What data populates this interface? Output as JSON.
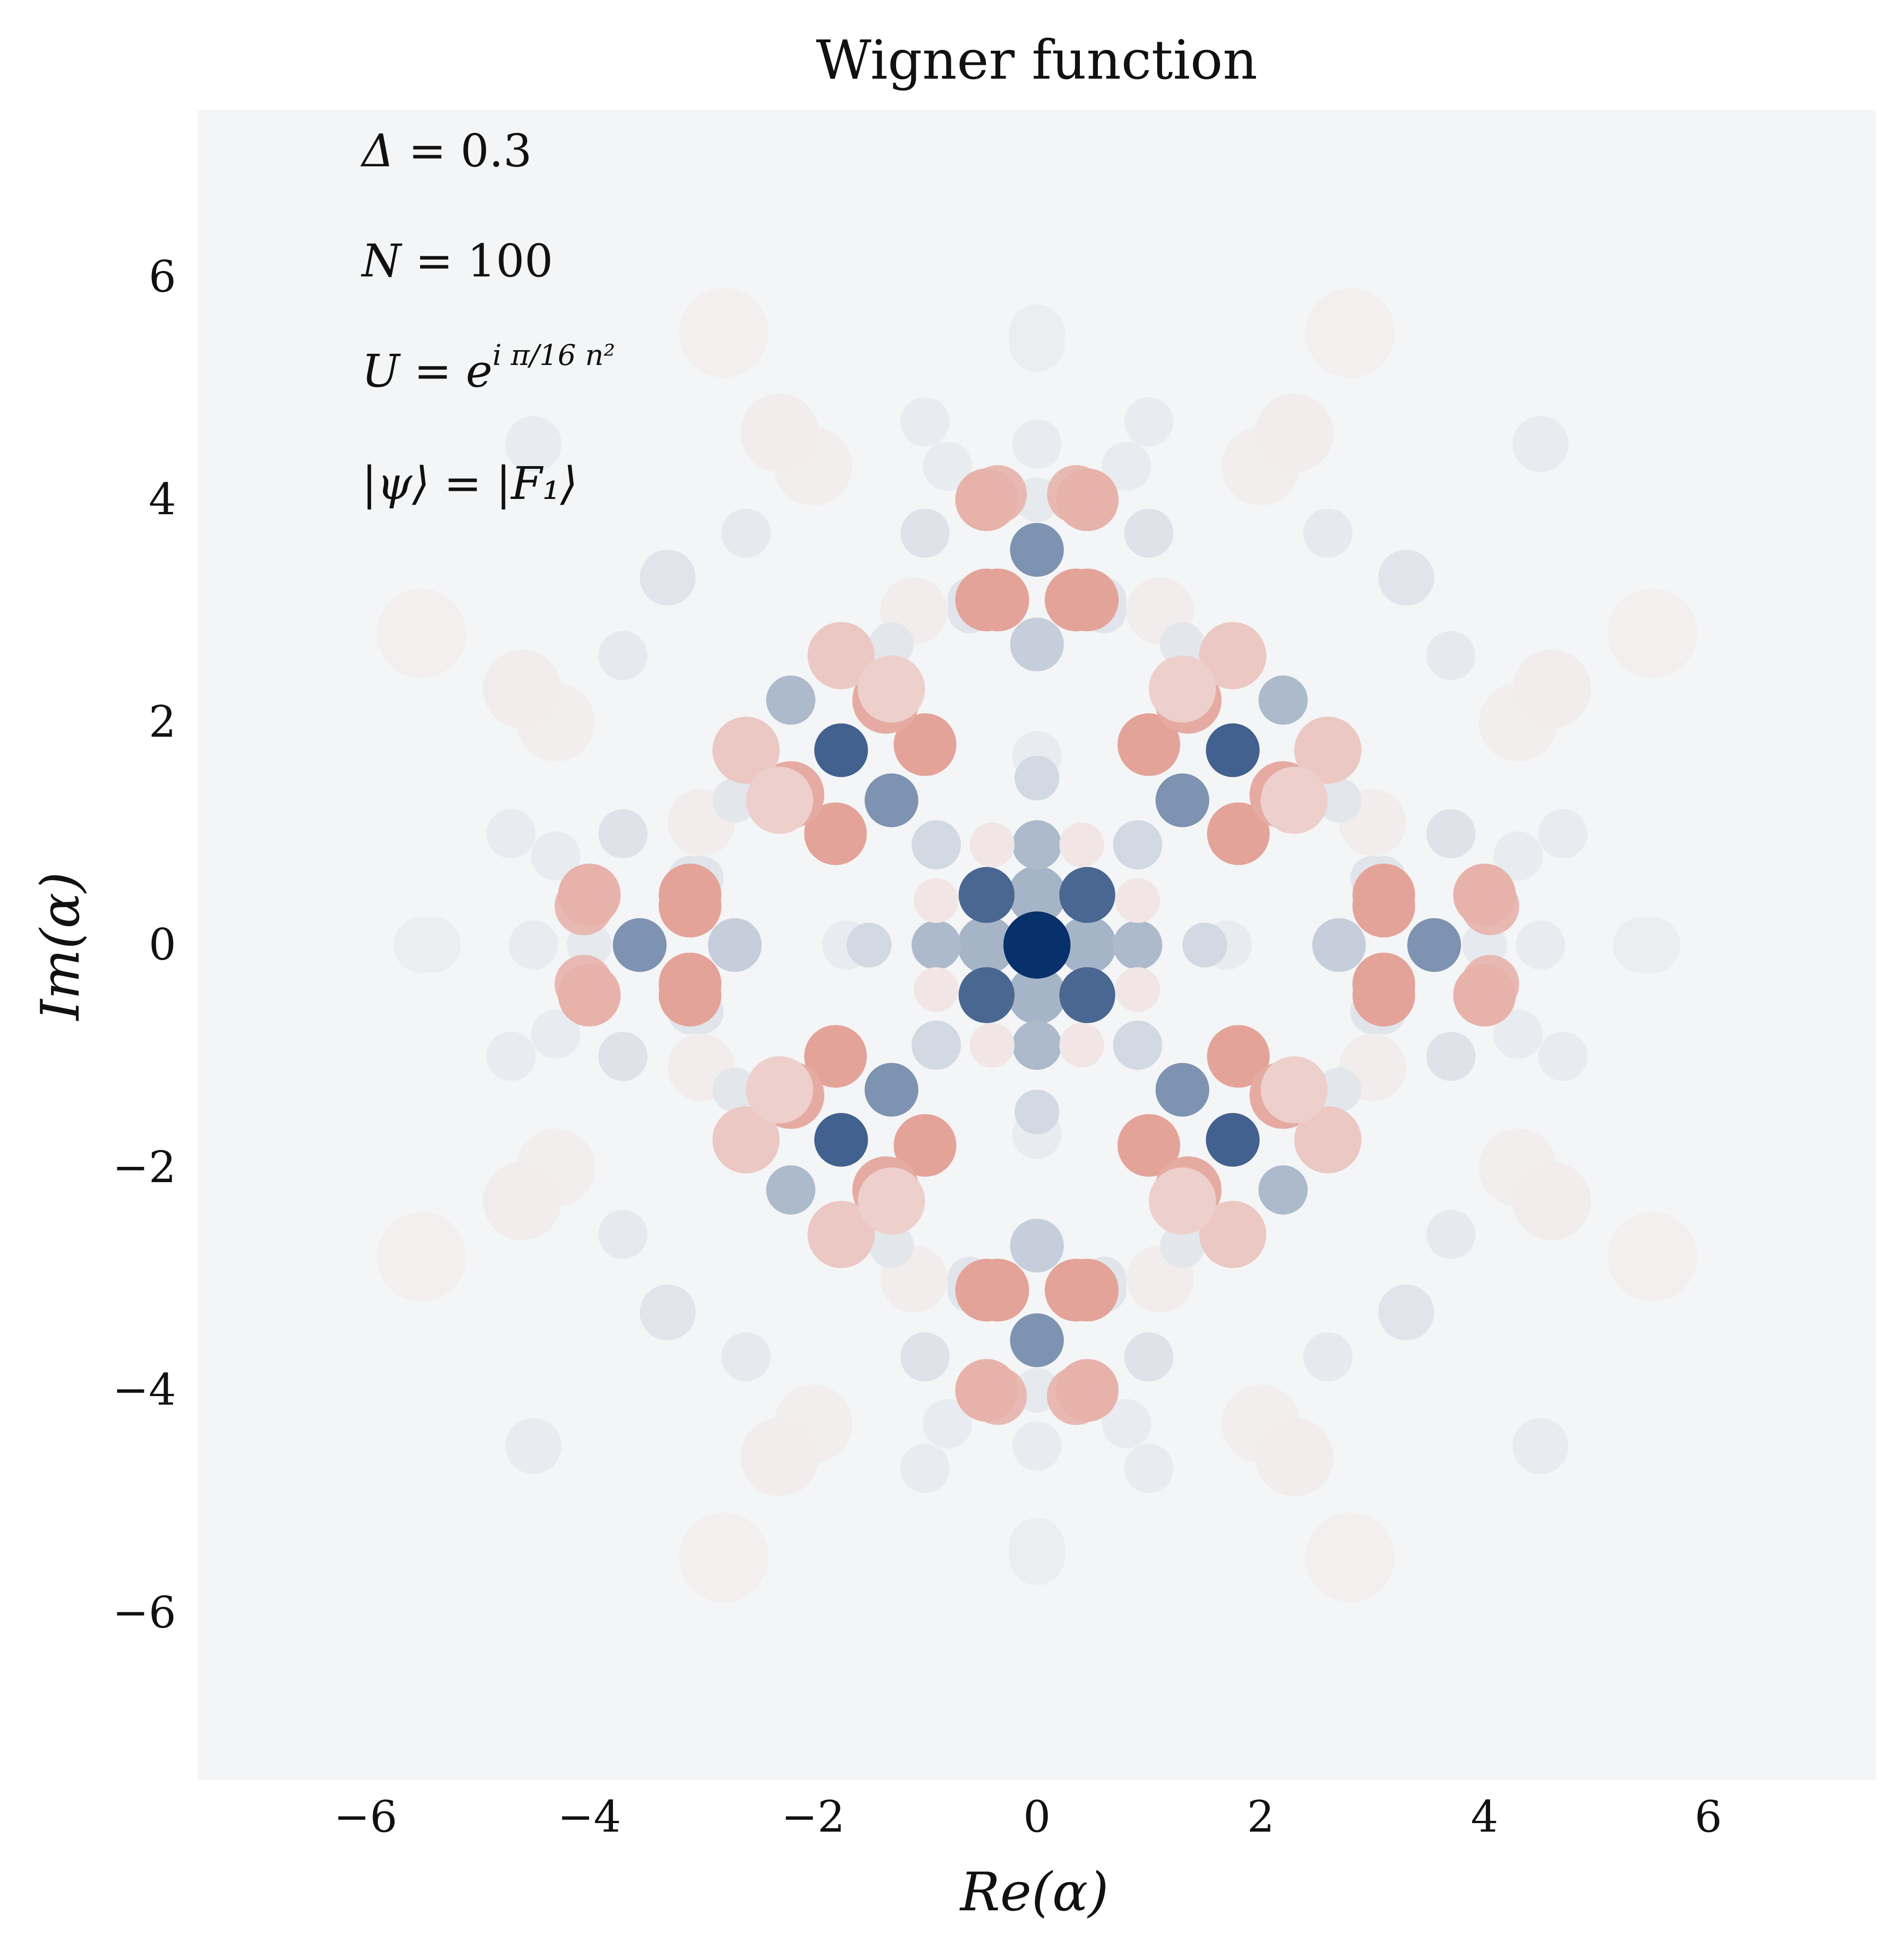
{
  "chart_data": {
    "type": "heatmap",
    "title": "Wigner function",
    "xlabel": "Re(α)",
    "ylabel": "Im(α)",
    "xlim": [
      -7.5,
      7.5
    ],
    "ylim": [
      -7.5,
      7.5
    ],
    "xticks": [
      -6,
      -4,
      -2,
      0,
      2,
      4,
      6
    ],
    "yticks": [
      -6,
      -4,
      -2,
      0,
      2,
      4,
      6
    ],
    "xtick_labels": [
      "−6",
      "−4",
      "−2",
      "0",
      "2",
      "4",
      "6"
    ],
    "ytick_labels": [
      "−6",
      "−4",
      "−2",
      "0",
      "2",
      "4",
      "6"
    ],
    "colormap": "diverging red-white-blue (positive = blue, negative = red)",
    "colors": {
      "positive": "#08306b",
      "negative": "#d6604d",
      "zero": "#f4f5f6"
    },
    "grid": false,
    "annotations": [
      {
        "lhs": "Δ",
        "rhs": "0.3"
      },
      {
        "lhs": "N",
        "rhs": "100"
      },
      {
        "lhs": "U",
        "rhs": "e",
        "exponent": "i π/16 n²"
      },
      {
        "lhs": "|ψ⟩",
        "rhs": "|F₁⟩"
      }
    ],
    "features": {
      "central_peak": {
        "x": 0,
        "y": 0,
        "sign": "positive",
        "strength": 1.0
      },
      "diagonal_ridges": "positive spots along both diagonals y = ±x",
      "side_clusters": "four 2x2 negative/positive clusters centred near (±3.5, 0) and (0, ±3.5)"
    }
  }
}
